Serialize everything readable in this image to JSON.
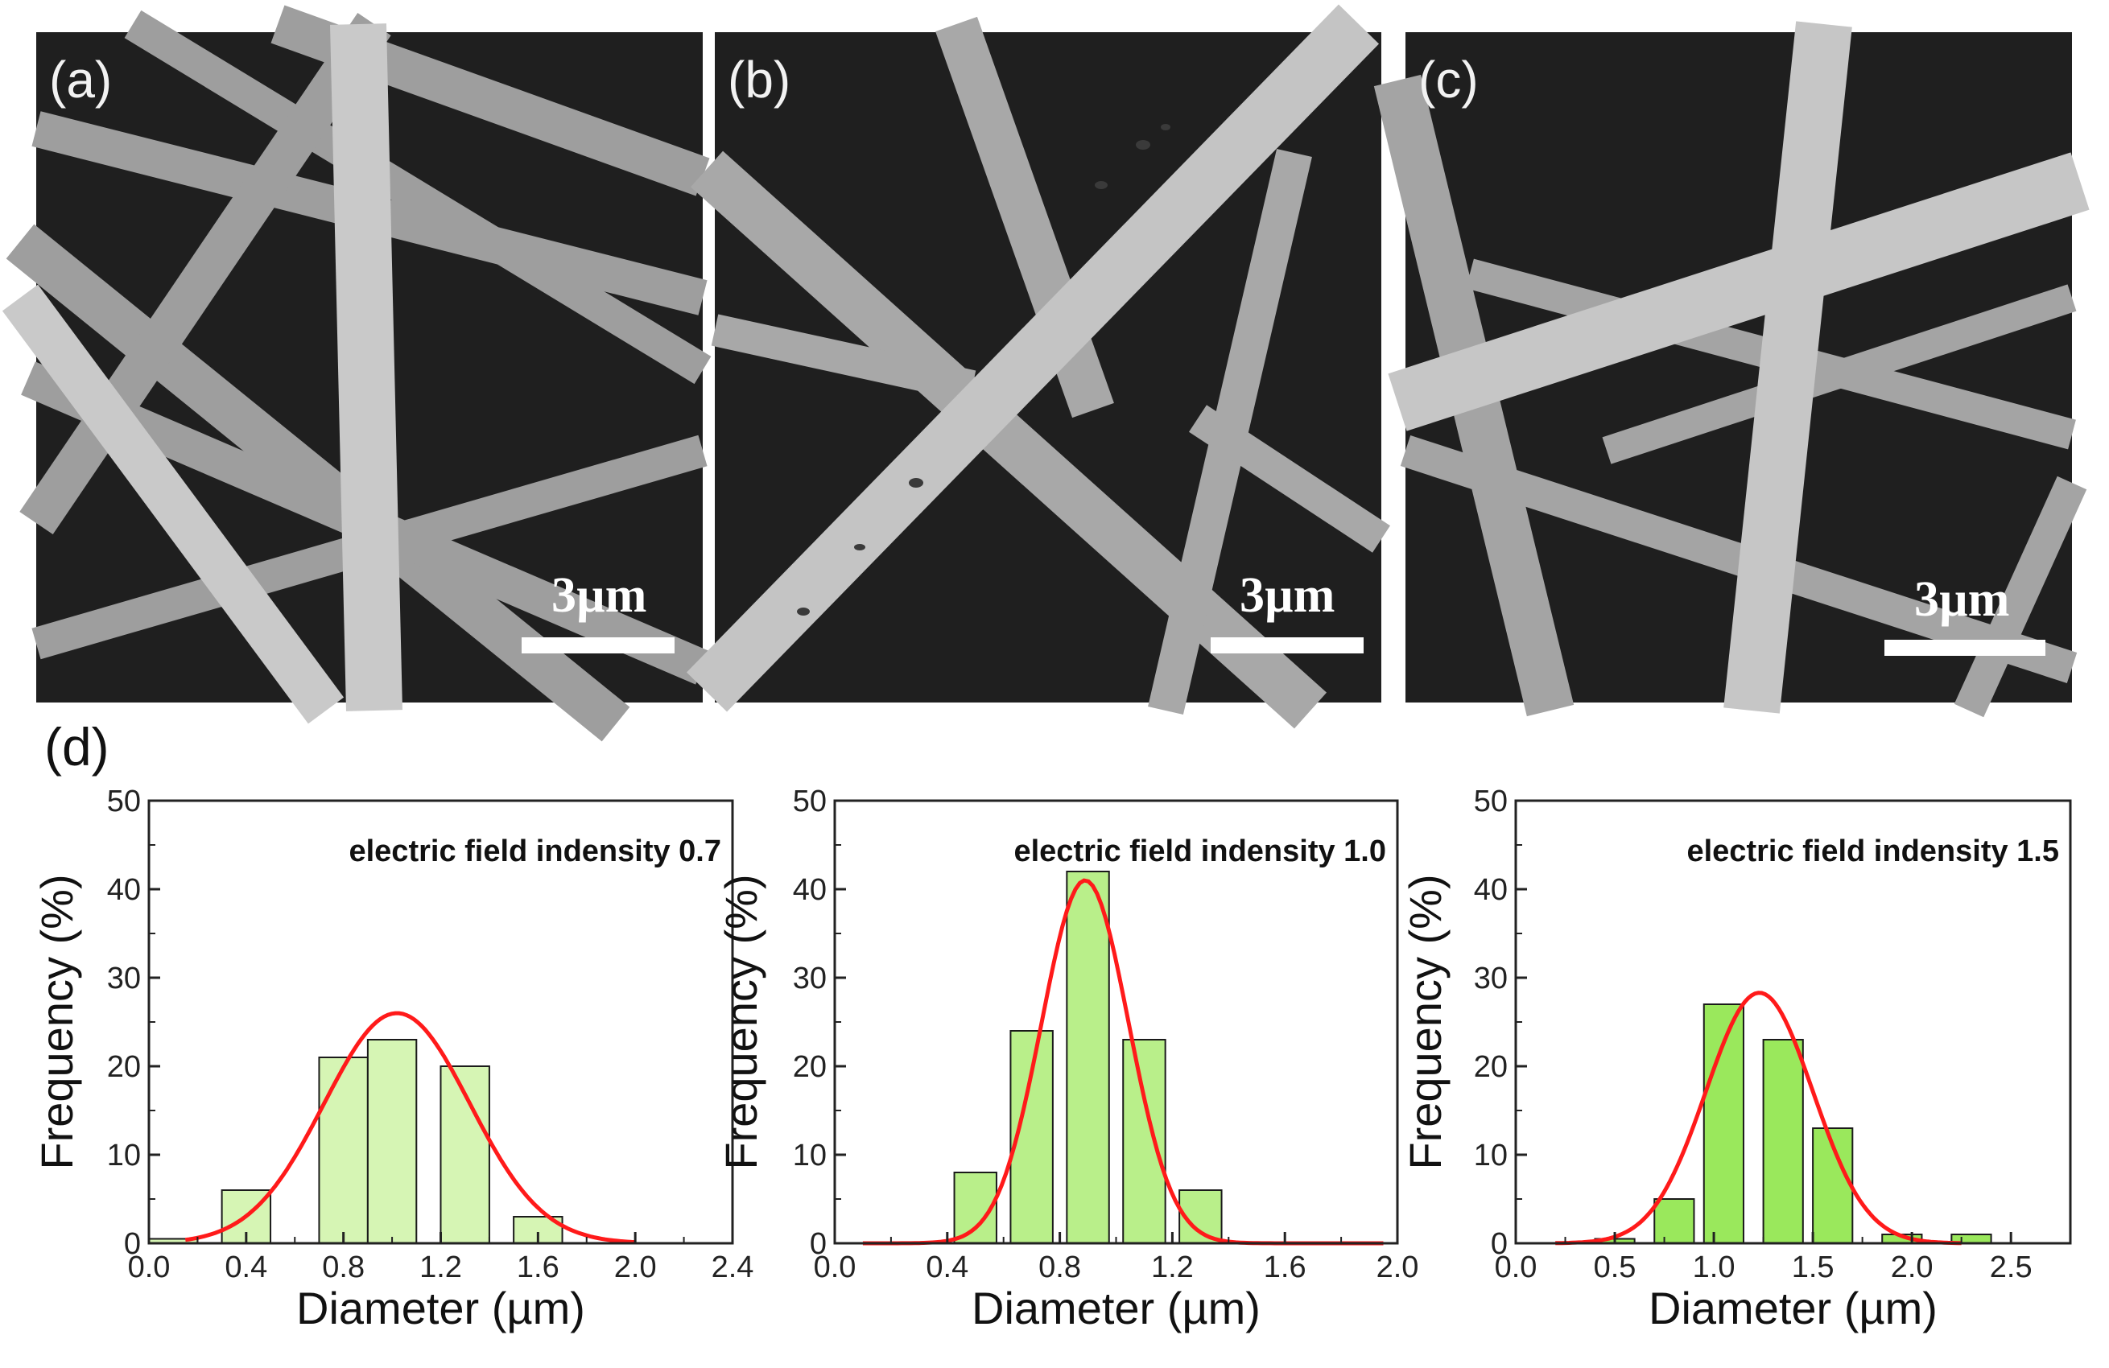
{
  "panels": [
    {
      "label": "(a)",
      "scale_text": "3µm"
    },
    {
      "label": "(b)",
      "scale_text": "3µm"
    },
    {
      "label": "(c)",
      "scale_text": "3µm"
    }
  ],
  "panel_d_label": "(d)",
  "colors": {
    "fit_curve": "#ff1a1a",
    "bar_a": "#d6f5b4",
    "bar_b": "#b9ef8a",
    "bar_c": "#9ae85c",
    "sem_bg": "#1f1f1f",
    "fiber": "#bdbdbd"
  },
  "chart_data": [
    {
      "type": "bar",
      "title": "electric field indensity 0.7",
      "xlabel": "Diameter (µm)",
      "ylabel": "Frequency (%)",
      "xlim": [
        0.0,
        2.4
      ],
      "ylim": [
        0,
        50
      ],
      "xticks": [
        "0.0",
        "0.4",
        "0.8",
        "1.2",
        "1.6",
        "2.0",
        "2.4"
      ],
      "yticks": [
        "0",
        "10",
        "20",
        "30",
        "40",
        "50"
      ],
      "bar_width": 0.2,
      "x": [
        0.1,
        0.4,
        0.8,
        1.0,
        1.3,
        1.6
      ],
      "values": [
        0.5,
        6,
        21,
        23,
        20,
        3
      ],
      "fit": {
        "type": "gaussian",
        "mean": 1.02,
        "sd": 0.3,
        "amplitude": 26,
        "range": [
          0.15,
          2.0
        ]
      }
    },
    {
      "type": "bar",
      "title": "electric field indensity 1.0",
      "xlabel": "Diameter (µm)",
      "ylabel": "Frequency (%)",
      "xlim": [
        0.0,
        2.0
      ],
      "ylim": [
        0,
        50
      ],
      "xticks": [
        "0.0",
        "0.4",
        "0.8",
        "1.2",
        "1.6",
        "2.0"
      ],
      "yticks": [
        "0",
        "10",
        "20",
        "30",
        "40",
        "50"
      ],
      "bar_width": 0.15,
      "x": [
        0.5,
        0.7,
        0.9,
        1.1,
        1.3
      ],
      "values": [
        8,
        24,
        42,
        23,
        6
      ],
      "fit": {
        "type": "gaussian",
        "mean": 0.89,
        "sd": 0.155,
        "amplitude": 41,
        "range": [
          0.1,
          1.95
        ]
      }
    },
    {
      "type": "bar",
      "title": "electric field indensity 1.5",
      "xlabel": "Diameter (µm)",
      "ylabel": "Frequency (%)",
      "xlim": [
        0.0,
        2.8
      ],
      "ylim": [
        0,
        50
      ],
      "xticks": [
        "0.0",
        "0.5",
        "1.0",
        "1.5",
        "2.0",
        "2.5"
      ],
      "yticks": [
        "0",
        "10",
        "20",
        "30",
        "40",
        "50"
      ],
      "bar_width": 0.2,
      "x": [
        0.5,
        0.8,
        1.05,
        1.35,
        1.6,
        1.95,
        2.3
      ],
      "values": [
        0.5,
        5,
        27,
        23,
        13,
        1,
        1
      ],
      "fit": {
        "type": "gaussian",
        "mean": 1.23,
        "sd": 0.27,
        "amplitude": 28.3,
        "range": [
          0.2,
          2.25
        ]
      }
    }
  ]
}
